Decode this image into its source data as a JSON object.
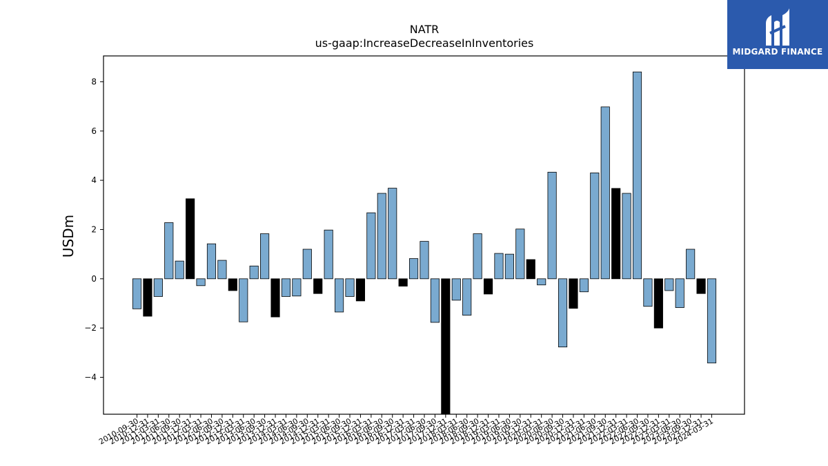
{
  "brand": {
    "name": "MIDGARD FINANCE",
    "icon": "midgard-logo-icon",
    "bg_color": "#2b5aad"
  },
  "colors": {
    "positive_bar": "#7aaad0",
    "highlight_bar": "#000000",
    "bar_edge": "#000000"
  },
  "chart_data": {
    "type": "bar",
    "title": "NATR",
    "subtitle": "us-gaap:IncreaseDecreaseInInventories",
    "ylabel": "USDm",
    "xlabel": "",
    "ylim": [
      -5.5,
      9.05
    ],
    "yticks": [
      -4,
      -2,
      0,
      2,
      4,
      6,
      8
    ],
    "ytick_labels": [
      "−4",
      "−2",
      "0",
      "2",
      "4",
      "6",
      "8"
    ],
    "grid": false,
    "categories": [
      "2010-09-30",
      "2010-12-31",
      "2011-03-31",
      "2011-06-30",
      "2011-09-30",
      "2011-12-31",
      "2012-03-31",
      "2012-06-30",
      "2012-09-30",
      "2012-12-31",
      "2013-03-31",
      "2013-06-30",
      "2013-09-30",
      "2013-12-31",
      "2014-03-31",
      "2014-06-30",
      "2014-09-30",
      "2014-12-31",
      "2015-03-31",
      "2015-06-30",
      "2015-09-30",
      "2015-12-31",
      "2016-03-31",
      "2016-06-30",
      "2016-09-30",
      "2016-12-31",
      "2017-03-31",
      "2017-06-30",
      "2017-09-30",
      "2017-12-31",
      "2018-03-31",
      "2018-06-30",
      "2018-09-30",
      "2018-12-31",
      "2019-03-31",
      "2019-06-30",
      "2019-09-30",
      "2019-12-31",
      "2020-03-31",
      "2020-06-30",
      "2020-09-30",
      "2020-12-31",
      "2021-03-31",
      "2021-06-30",
      "2021-09-30",
      "2021-12-31",
      "2022-03-31",
      "2022-06-30",
      "2022-09-30",
      "2022-12-31",
      "2023-03-31",
      "2023-06-30",
      "2023-09-30",
      "2023-12-31",
      "2024-03-31"
    ],
    "values": [
      -1.22,
      -1.52,
      -0.72,
      2.28,
      0.72,
      3.25,
      -0.28,
      1.42,
      0.75,
      -0.48,
      -1.75,
      0.52,
      1.83,
      -1.55,
      -0.72,
      -0.7,
      1.2,
      -0.6,
      1.98,
      -1.35,
      -0.72,
      -0.9,
      2.68,
      3.47,
      3.68,
      -0.3,
      0.82,
      1.52,
      -1.77,
      -5.6,
      -0.87,
      -1.48,
      1.83,
      -0.62,
      1.03,
      1.0,
      2.02,
      0.78,
      -0.25,
      4.33,
      -2.77,
      -1.2,
      -0.53,
      4.3,
      6.98,
      3.67,
      3.47,
      8.4,
      -1.12,
      -2.0,
      -0.48,
      -1.17,
      1.2,
      -0.6,
      -3.42
    ],
    "highlight_indices": [
      1,
      5,
      9,
      13,
      17,
      21,
      25,
      29,
      33,
      37,
      41,
      45,
      49,
      53
    ]
  }
}
